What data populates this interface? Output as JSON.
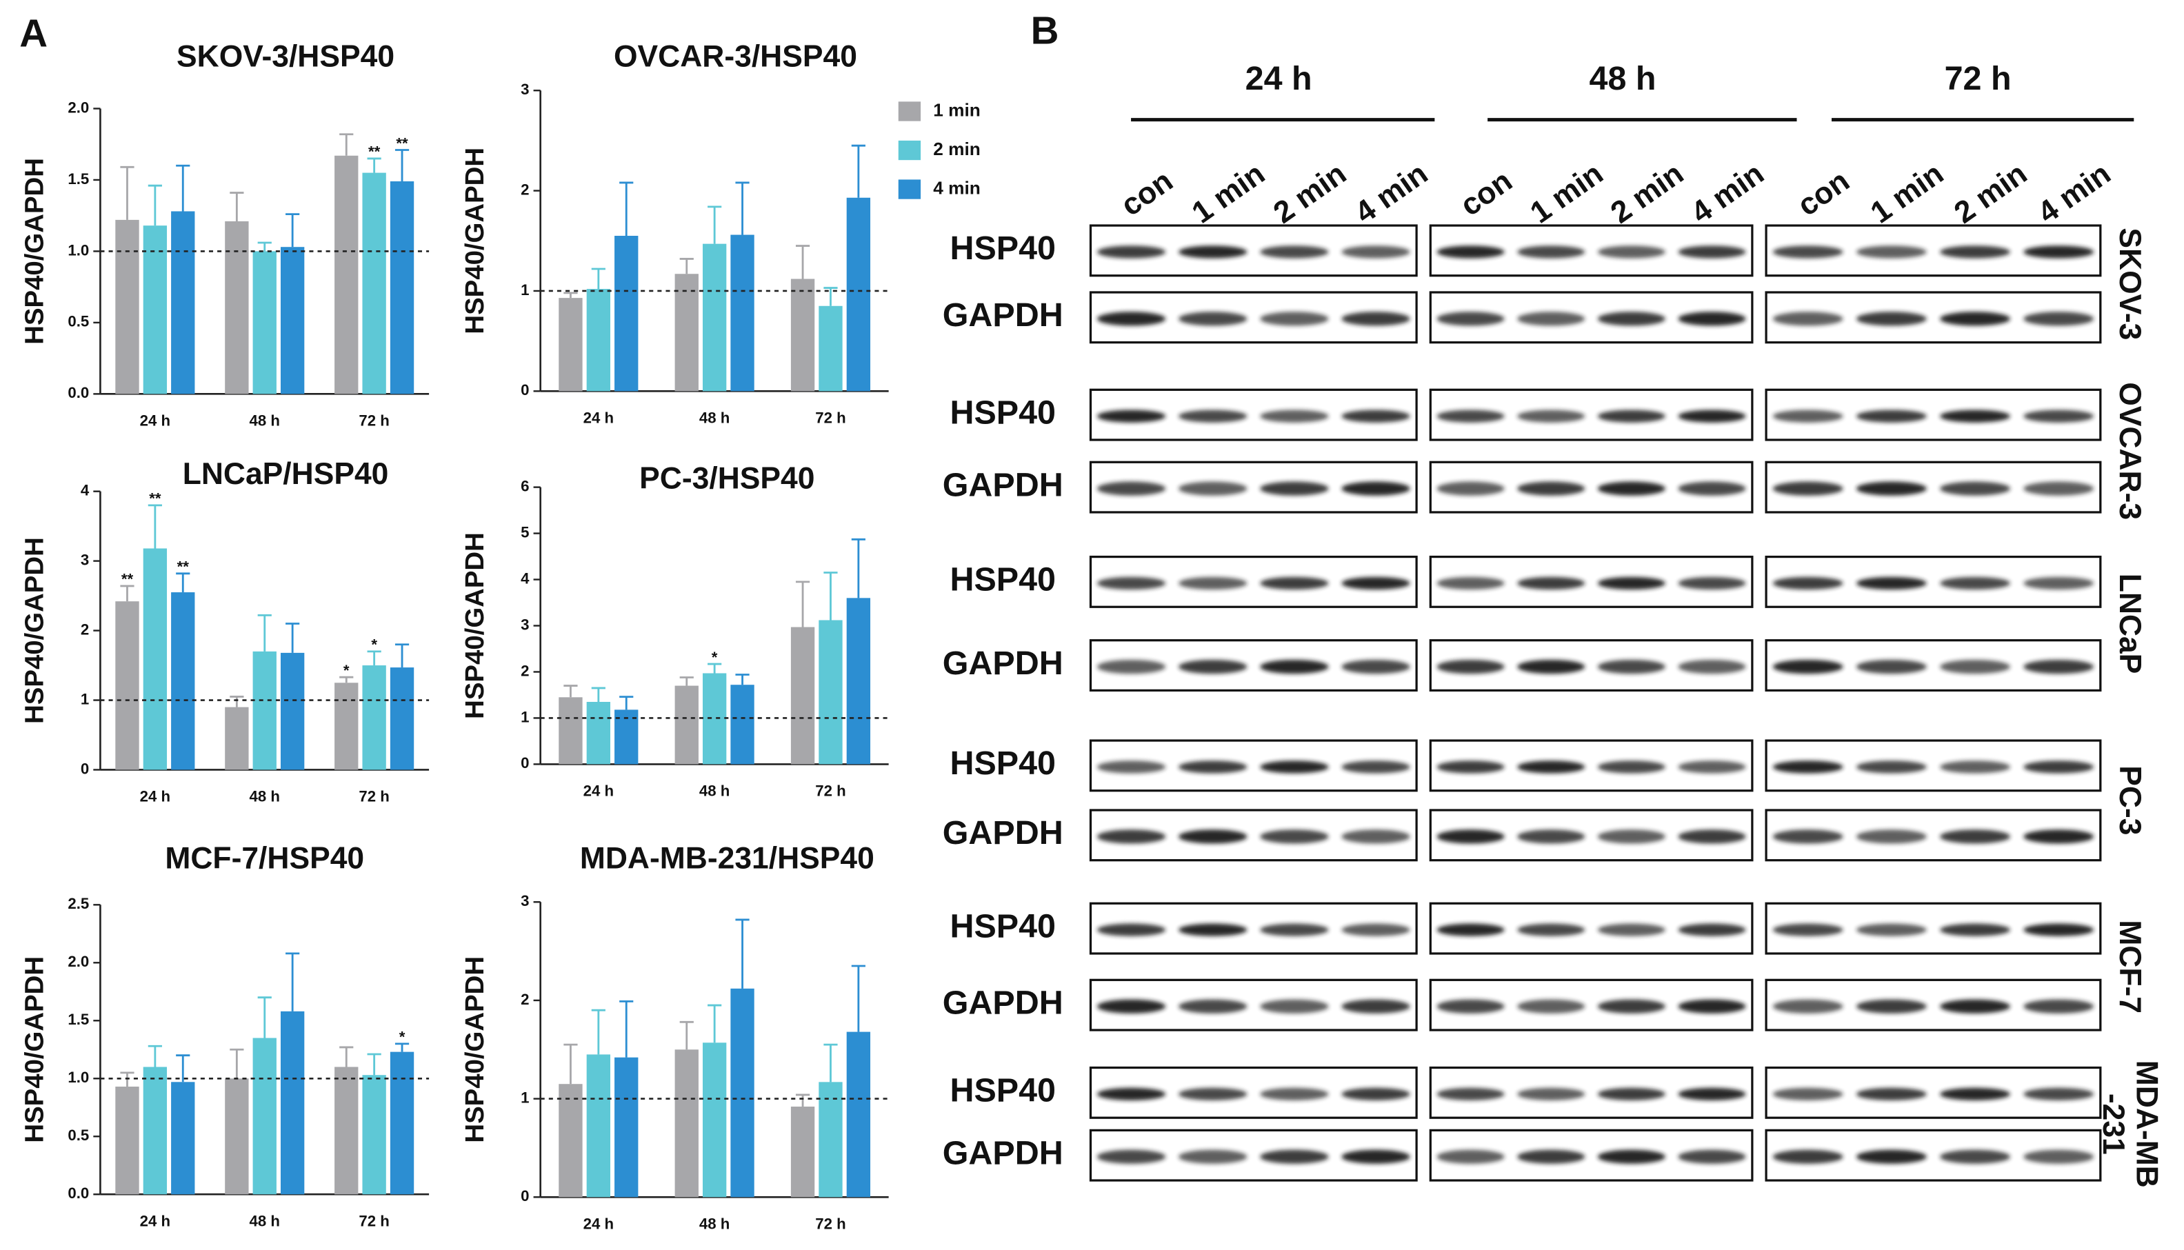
{
  "panel_labels": [
    "A",
    "B"
  ],
  "chart_data": [
    {
      "type": "bar",
      "title": "SKOV-3/HSP40",
      "y_label": "HSP40/GAPDH",
      "categories": [
        "24 h",
        "48 h",
        "72 h"
      ],
      "ylim": [
        0,
        2
      ],
      "yticks": [
        {
          "value": 0,
          "label": "0.0"
        },
        {
          "value": 0.5,
          "label": "0.5"
        },
        {
          "value": 1,
          "label": "1.0"
        },
        {
          "value": 1.5,
          "label": "1.5"
        },
        {
          "value": 2,
          "label": "2.0"
        }
      ],
      "refline": 1,
      "series": [
        {
          "color": "#a7a7aa",
          "values": [
            1.22,
            1.21,
            1.67
          ],
          "errors": [
            0.37,
            0.2,
            0.15
          ],
          "annotations": [
            null,
            null,
            null
          ]
        },
        {
          "color": "#5ec8d6",
          "values": [
            1.18,
            1.0,
            1.55
          ],
          "errors": [
            0.28,
            0.06,
            0.1
          ],
          "annotations": [
            null,
            null,
            "**"
          ]
        },
        {
          "color": "#2c8ed2",
          "values": [
            1.28,
            1.03,
            1.49
          ],
          "errors": [
            0.32,
            0.23,
            0.22
          ],
          "annotations": [
            null,
            null,
            "**"
          ]
        }
      ]
    },
    {
      "type": "bar",
      "title": "OVCAR-3/HSP40",
      "y_label": "HSP40/GAPDH",
      "categories": [
        "24 h",
        "48 h",
        "72 h"
      ],
      "ylim": [
        0,
        3
      ],
      "yticks": [
        0,
        1,
        2,
        3
      ],
      "refline": 1,
      "legend": "right",
      "series": [
        {
          "name": "1 min",
          "color": "#a7a7aa",
          "values": [
            0.93,
            1.17,
            1.12
          ],
          "errors": [
            0.05,
            0.15,
            0.33
          ],
          "annotations": [
            null,
            null,
            null
          ]
        },
        {
          "name": "2 min",
          "color": "#5ec8d6",
          "values": [
            1.02,
            1.47,
            0.85
          ],
          "errors": [
            0.2,
            0.37,
            0.18
          ],
          "annotations": [
            null,
            null,
            null
          ]
        },
        {
          "name": "4 min",
          "color": "#2c8ed2",
          "values": [
            1.55,
            1.56,
            1.93
          ],
          "errors": [
            0.53,
            0.52,
            0.52
          ],
          "annotations": [
            null,
            null,
            null
          ]
        }
      ]
    },
    {
      "type": "bar",
      "title": "LNCaP/HSP40",
      "y_label": "HSP40/GAPDH",
      "categories": [
        "24 h",
        "48 h",
        "72 h"
      ],
      "ylim": [
        0,
        4
      ],
      "yticks": [
        0,
        1,
        2,
        3,
        4
      ],
      "refline": 1,
      "series": [
        {
          "color": "#a7a7aa",
          "values": [
            2.42,
            0.9,
            1.25
          ],
          "errors": [
            0.22,
            0.15,
            0.08
          ],
          "annotations": [
            "**",
            null,
            "*"
          ]
        },
        {
          "color": "#5ec8d6",
          "values": [
            3.18,
            1.7,
            1.5
          ],
          "errors": [
            0.62,
            0.52,
            0.2
          ],
          "annotations": [
            "**",
            null,
            "*"
          ]
        },
        {
          "color": "#2c8ed2",
          "values": [
            2.55,
            1.68,
            1.47
          ],
          "errors": [
            0.27,
            0.42,
            0.33
          ],
          "annotations": [
            "**",
            null,
            null
          ]
        }
      ]
    },
    {
      "type": "bar",
      "title": "PC-3/HSP40",
      "y_label": "HSP40/GAPDH",
      "categories": [
        "24 h",
        "48 h",
        "72 h"
      ],
      "ylim": [
        0,
        6
      ],
      "yticks": [
        0,
        1,
        2,
        3,
        4,
        5,
        6
      ],
      "refline": 1,
      "series": [
        {
          "color": "#a7a7aa",
          "values": [
            1.45,
            1.7,
            2.97
          ],
          "errors": [
            0.25,
            0.18,
            0.98
          ],
          "annotations": [
            null,
            null,
            null
          ]
        },
        {
          "color": "#5ec8d6",
          "values": [
            1.35,
            1.97,
            3.12
          ],
          "errors": [
            0.3,
            0.2,
            1.03
          ],
          "annotations": [
            null,
            "*",
            null
          ]
        },
        {
          "color": "#2c8ed2",
          "values": [
            1.18,
            1.72,
            3.6
          ],
          "errors": [
            0.28,
            0.22,
            1.27
          ],
          "annotations": [
            null,
            null,
            null
          ]
        }
      ]
    },
    {
      "type": "bar",
      "title": "MCF-7/HSP40",
      "y_label": "HSP40/GAPDH",
      "categories": [
        "24 h",
        "48 h",
        "72 h"
      ],
      "ylim": [
        0,
        2.5
      ],
      "yticks": [
        {
          "value": 0,
          "label": "0.0"
        },
        {
          "value": 0.5,
          "label": "0.5"
        },
        {
          "value": 1,
          "label": "1.0"
        },
        {
          "value": 1.5,
          "label": "1.5"
        },
        {
          "value": 2,
          "label": "2.0"
        },
        {
          "value": 2.5,
          "label": "2.5"
        }
      ],
      "refline": 1,
      "series": [
        {
          "color": "#a7a7aa",
          "values": [
            0.93,
            1.0,
            1.1
          ],
          "errors": [
            0.12,
            0.25,
            0.17
          ],
          "annotations": [
            null,
            null,
            null
          ]
        },
        {
          "color": "#5ec8d6",
          "values": [
            1.1,
            1.35,
            1.03
          ],
          "errors": [
            0.18,
            0.35,
            0.18
          ],
          "annotations": [
            null,
            null,
            null
          ]
        },
        {
          "color": "#2c8ed2",
          "values": [
            0.97,
            1.58,
            1.23
          ],
          "errors": [
            0.23,
            0.5,
            0.07
          ],
          "annotations": [
            null,
            null,
            "*"
          ]
        }
      ]
    },
    {
      "type": "bar",
      "title": "MDA-MB-231/HSP40",
      "y_label": "HSP40/GAPDH",
      "categories": [
        "24 h",
        "48 h",
        "72 h"
      ],
      "ylim": [
        0,
        3
      ],
      "yticks": [
        0,
        1,
        2,
        3
      ],
      "refline": 1,
      "series": [
        {
          "color": "#a7a7aa",
          "values": [
            1.15,
            1.5,
            0.92
          ],
          "errors": [
            0.4,
            0.28,
            0.12
          ],
          "annotations": [
            null,
            null,
            null
          ]
        },
        {
          "color": "#5ec8d6",
          "values": [
            1.45,
            1.57,
            1.17
          ],
          "errors": [
            0.45,
            0.38,
            0.38
          ],
          "annotations": [
            null,
            null,
            null
          ]
        },
        {
          "color": "#2c8ed2",
          "values": [
            1.42,
            2.12,
            1.68
          ],
          "errors": [
            0.57,
            0.7,
            0.67
          ],
          "annotations": [
            null,
            null,
            null
          ]
        }
      ]
    }
  ],
  "blot": {
    "timepoints": [
      "24 h",
      "48 h",
      "72 h"
    ],
    "lanes": [
      "con",
      "1 min",
      "2 min",
      "4 min"
    ],
    "cell_lines": [
      {
        "label_lines": [
          "SKOV-3"
        ],
        "rows": [
          "HSP40",
          "GAPDH"
        ]
      },
      {
        "label_lines": [
          "OVCAR-3"
        ],
        "rows": [
          "HSP40",
          "GAPDH"
        ]
      },
      {
        "label_lines": [
          "LNCaP"
        ],
        "rows": [
          "HSP40",
          "GAPDH"
        ]
      },
      {
        "label_lines": [
          "PC-3"
        ],
        "rows": [
          "HSP40",
          "GAPDH"
        ]
      },
      {
        "label_lines": [
          "MCF-7"
        ],
        "rows": [
          "HSP40",
          "GAPDH"
        ]
      },
      {
        "label_lines": [
          "MDA-MB",
          "-231"
        ],
        "rows": [
          "HSP40",
          "GAPDH"
        ]
      }
    ]
  }
}
